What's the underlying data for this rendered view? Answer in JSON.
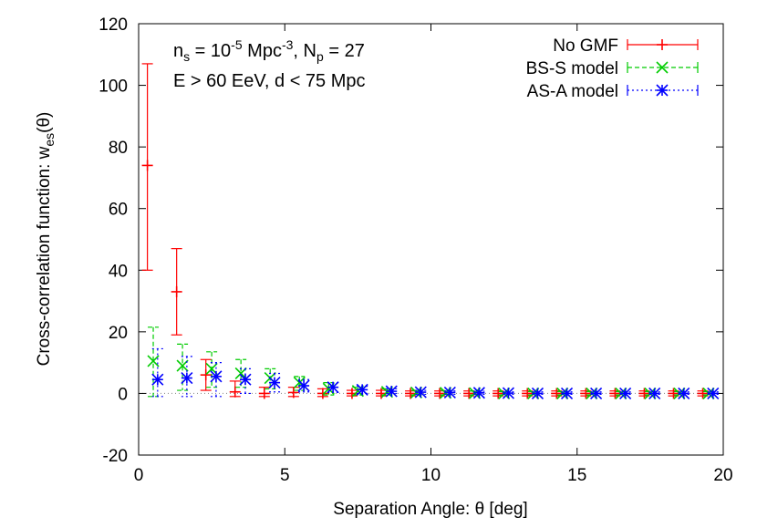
{
  "chart_data": {
    "type": "scatter",
    "title": "",
    "xlabel_text": "Separation Angle: θ [deg]",
    "ylabel_main": "Cross-correlation function: w",
    "ylabel_sub": "es",
    "ylabel_tail": "(θ)",
    "xlim": [
      0,
      20
    ],
    "ylim": [
      -20,
      120
    ],
    "xticks": [
      "0",
      "5",
      "10",
      "15",
      "20"
    ],
    "yticks": [
      "-20",
      "0",
      "20",
      "40",
      "60",
      "80",
      "100",
      "120"
    ],
    "grid": false,
    "legend_position": "top-right",
    "annotation": {
      "line1": {
        "a": "n",
        "a_sub": "s",
        "b": " = 10",
        "b_sup": "-5",
        "c": " Mpc",
        "c_sup": "-3",
        "d": ", N",
        "d_sub": "p",
        "e": " = 27"
      },
      "line2": "E > 60 EeV, d < 75 Mpc"
    },
    "series": [
      {
        "name": "No GMF",
        "color": "#ff0000",
        "marker": "plus",
        "points": [
          {
            "x": 0.3,
            "y": 74,
            "lo": 40,
            "hi": 107
          },
          {
            "x": 1.3,
            "y": 33,
            "lo": 19,
            "hi": 47
          },
          {
            "x": 2.3,
            "y": 6,
            "lo": 1,
            "hi": 11
          },
          {
            "x": 3.3,
            "y": 0.5,
            "lo": -1,
            "hi": 4
          },
          {
            "x": 4.3,
            "y": 0,
            "lo": -1,
            "hi": 2
          },
          {
            "x": 5.3,
            "y": 0.3,
            "lo": -1,
            "hi": 2
          },
          {
            "x": 6.3,
            "y": 0,
            "lo": -1,
            "hi": 1.5
          },
          {
            "x": 7.3,
            "y": 0,
            "lo": -0.8,
            "hi": 1
          },
          {
            "x": 8.3,
            "y": 0,
            "lo": -0.8,
            "hi": 1
          },
          {
            "x": 9.3,
            "y": 0,
            "lo": -0.8,
            "hi": 0.8
          },
          {
            "x": 10.3,
            "y": 0,
            "lo": -0.8,
            "hi": 0.8
          },
          {
            "x": 11.3,
            "y": 0,
            "lo": -0.8,
            "hi": 0.8
          },
          {
            "x": 12.3,
            "y": 0,
            "lo": -0.8,
            "hi": 0.8
          },
          {
            "x": 13.3,
            "y": 0,
            "lo": -0.8,
            "hi": 0.8
          },
          {
            "x": 14.3,
            "y": 0,
            "lo": -0.8,
            "hi": 0.8
          },
          {
            "x": 15.3,
            "y": 0,
            "lo": -0.8,
            "hi": 0.8
          },
          {
            "x": 16.3,
            "y": 0,
            "lo": -0.8,
            "hi": 0.8
          },
          {
            "x": 17.3,
            "y": 0,
            "lo": -0.8,
            "hi": 0.8
          },
          {
            "x": 18.3,
            "y": 0,
            "lo": -0.8,
            "hi": 0.8
          },
          {
            "x": 19.3,
            "y": 0,
            "lo": -0.8,
            "hi": 0.8
          }
        ]
      },
      {
        "name": "BS-S model",
        "color": "#00cc00",
        "marker": "cross",
        "points": [
          {
            "x": 0.5,
            "y": 10.5,
            "lo": -1,
            "hi": 21.5
          },
          {
            "x": 1.5,
            "y": 9,
            "lo": 1,
            "hi": 16
          },
          {
            "x": 2.5,
            "y": 8,
            "lo": 2,
            "hi": 13.5
          },
          {
            "x": 3.5,
            "y": 6.5,
            "lo": 2,
            "hi": 11
          },
          {
            "x": 4.5,
            "y": 5,
            "lo": 1.5,
            "hi": 8
          },
          {
            "x": 5.5,
            "y": 3.5,
            "lo": 1,
            "hi": 5.5
          },
          {
            "x": 6.5,
            "y": 1.5,
            "lo": -0.5,
            "hi": 3.5
          },
          {
            "x": 7.5,
            "y": 0.8,
            "lo": -0.5,
            "hi": 2
          },
          {
            "x": 8.5,
            "y": 0.5,
            "lo": -0.5,
            "hi": 1.5
          },
          {
            "x": 9.5,
            "y": 0.3,
            "lo": -0.5,
            "hi": 1
          },
          {
            "x": 10.5,
            "y": 0.2,
            "lo": -0.5,
            "hi": 1
          },
          {
            "x": 11.5,
            "y": 0.1,
            "lo": -0.5,
            "hi": 0.8
          },
          {
            "x": 12.5,
            "y": 0,
            "lo": -0.5,
            "hi": 0.6
          },
          {
            "x": 13.5,
            "y": 0,
            "lo": -0.5,
            "hi": 0.6
          },
          {
            "x": 14.5,
            "y": 0,
            "lo": -0.5,
            "hi": 0.6
          },
          {
            "x": 15.5,
            "y": 0,
            "lo": -0.5,
            "hi": 0.6
          },
          {
            "x": 16.5,
            "y": 0,
            "lo": -0.5,
            "hi": 0.6
          },
          {
            "x": 17.5,
            "y": 0,
            "lo": -0.5,
            "hi": 0.6
          },
          {
            "x": 18.5,
            "y": 0,
            "lo": -0.5,
            "hi": 0.6
          },
          {
            "x": 19.5,
            "y": 0,
            "lo": -0.5,
            "hi": 0.6
          }
        ]
      },
      {
        "name": "AS-A model",
        "color": "#0000ff",
        "marker": "star",
        "points": [
          {
            "x": 0.65,
            "y": 4.5,
            "lo": -1,
            "hi": 14.5
          },
          {
            "x": 1.65,
            "y": 5,
            "lo": -1,
            "hi": 12
          },
          {
            "x": 2.65,
            "y": 5.5,
            "lo": -1,
            "hi": 10
          },
          {
            "x": 3.65,
            "y": 4.5,
            "lo": 0,
            "hi": 8
          },
          {
            "x": 4.65,
            "y": 3.5,
            "lo": 0.5,
            "hi": 6.5
          },
          {
            "x": 5.65,
            "y": 2.5,
            "lo": 0.5,
            "hi": 4.5
          },
          {
            "x": 6.65,
            "y": 2,
            "lo": 0.3,
            "hi": 3.5
          },
          {
            "x": 7.65,
            "y": 1.2,
            "lo": 0,
            "hi": 2.3
          },
          {
            "x": 8.65,
            "y": 0.7,
            "lo": 0,
            "hi": 1.5
          },
          {
            "x": 9.65,
            "y": 0.4,
            "lo": -0.3,
            "hi": 1
          },
          {
            "x": 10.65,
            "y": 0.3,
            "lo": -0.3,
            "hi": 0.8
          },
          {
            "x": 11.65,
            "y": 0.2,
            "lo": -0.3,
            "hi": 0.7
          },
          {
            "x": 12.65,
            "y": 0.1,
            "lo": -0.3,
            "hi": 0.5
          },
          {
            "x": 13.65,
            "y": 0,
            "lo": -0.3,
            "hi": 0.5
          },
          {
            "x": 14.65,
            "y": 0,
            "lo": -0.3,
            "hi": 0.5
          },
          {
            "x": 15.65,
            "y": 0,
            "lo": -0.3,
            "hi": 0.5
          },
          {
            "x": 16.65,
            "y": 0,
            "lo": -0.3,
            "hi": 0.5
          },
          {
            "x": 17.65,
            "y": 0,
            "lo": -0.3,
            "hi": 0.5
          },
          {
            "x": 18.65,
            "y": 0,
            "lo": -0.3,
            "hi": 0.5
          },
          {
            "x": 19.65,
            "y": 0,
            "lo": -0.3,
            "hi": 0.5
          }
        ]
      }
    ]
  }
}
